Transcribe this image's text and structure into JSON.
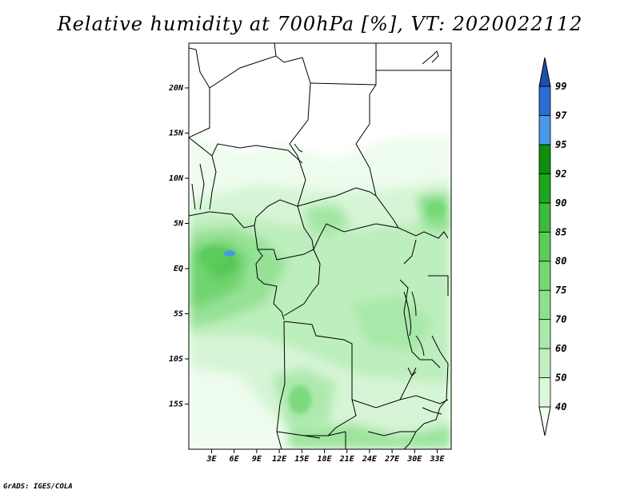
{
  "title": "Relative humidity at 700hPa [%], VT: 2020022112",
  "credit": "GrADS: IGES/COLA",
  "lat_labels": [
    "20N",
    "15N",
    "10N",
    "5N",
    "EQ",
    "5S",
    "10S",
    "15S"
  ],
  "lon_labels": [
    "3E",
    "6E",
    "9E",
    "12E",
    "15E",
    "18E",
    "21E",
    "24E",
    "27E",
    "30E",
    "33E"
  ],
  "colorbar": {
    "labels": [
      "40",
      "50",
      "60",
      "70",
      "75",
      "80",
      "85",
      "90",
      "92",
      "95",
      "97",
      "99"
    ],
    "colors": [
      "#f0fff0",
      "#dcf8dc",
      "#c2efc2",
      "#a8e8a8",
      "#8ee08e",
      "#74d874",
      "#5acc5a",
      "#3cbb3c",
      "#1ea61e",
      "#0d8f0d",
      "#4a98e8",
      "#2a6fd0",
      "#1c4fb0"
    ]
  }
}
